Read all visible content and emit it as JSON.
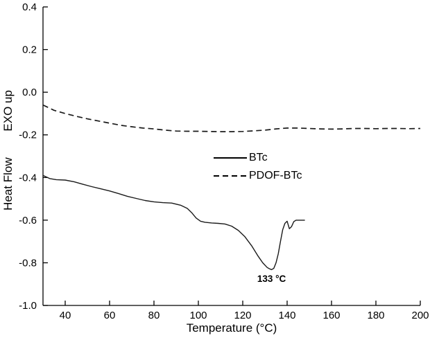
{
  "chart_data": {
    "type": "line",
    "title": "",
    "xlabel": "Temperature (°C)",
    "ylabel": "Heat Flow        EXO up",
    "xlim": [
      30,
      200
    ],
    "ylim": [
      -1.0,
      0.4
    ],
    "xticks": [
      "40",
      "60",
      "80",
      "100",
      "120",
      "140",
      "160",
      "180",
      "200"
    ],
    "yticks": [
      "-1.0",
      "-0.8",
      "-0.6",
      "-0.4",
      "-0.2",
      "0.0",
      "0.2",
      "0.4"
    ],
    "grid": false,
    "legend_position": "center",
    "annotation": {
      "text": "133 °C",
      "x": 133,
      "y": -0.85
    },
    "series": [
      {
        "name": "BTc",
        "style": "solid",
        "color": "#1a1a1a",
        "x": [
          30,
          33,
          36,
          40,
          44,
          48,
          52,
          56,
          60,
          64,
          68,
          72,
          76,
          80,
          84,
          88,
          92,
          95,
          97,
          99,
          101,
          103,
          106,
          109,
          112,
          115,
          118,
          121,
          124,
          127,
          129,
          131,
          132,
          133,
          134,
          135,
          136,
          137,
          138,
          139,
          140,
          141,
          142,
          143,
          144,
          146,
          148
        ],
        "y": [
          -0.39,
          -0.405,
          -0.41,
          -0.412,
          -0.42,
          -0.432,
          -0.443,
          -0.453,
          -0.463,
          -0.475,
          -0.488,
          -0.498,
          -0.508,
          -0.514,
          -0.518,
          -0.52,
          -0.53,
          -0.545,
          -0.565,
          -0.59,
          -0.605,
          -0.61,
          -0.613,
          -0.615,
          -0.618,
          -0.628,
          -0.648,
          -0.678,
          -0.72,
          -0.77,
          -0.8,
          -0.822,
          -0.828,
          -0.832,
          -0.826,
          -0.8,
          -0.758,
          -0.7,
          -0.645,
          -0.615,
          -0.605,
          -0.64,
          -0.63,
          -0.607,
          -0.6,
          -0.6,
          -0.6
        ]
      },
      {
        "name": "PDOF-BTc",
        "style": "dashed",
        "color": "#1a1a1a",
        "x": [
          30,
          35,
          40,
          45,
          50,
          55,
          60,
          65,
          70,
          75,
          80,
          85,
          90,
          95,
          100,
          105,
          110,
          115,
          120,
          125,
          130,
          135,
          140,
          145,
          150,
          155,
          160,
          165,
          170,
          175,
          180,
          185,
          190,
          195,
          200
        ],
        "y": [
          -0.06,
          -0.085,
          -0.1,
          -0.113,
          -0.125,
          -0.135,
          -0.145,
          -0.155,
          -0.162,
          -0.168,
          -0.172,
          -0.178,
          -0.182,
          -0.183,
          -0.183,
          -0.184,
          -0.185,
          -0.185,
          -0.184,
          -0.181,
          -0.178,
          -0.172,
          -0.168,
          -0.168,
          -0.17,
          -0.172,
          -0.173,
          -0.172,
          -0.17,
          -0.17,
          -0.171,
          -0.17,
          -0.17,
          -0.171,
          -0.17
        ]
      }
    ]
  }
}
